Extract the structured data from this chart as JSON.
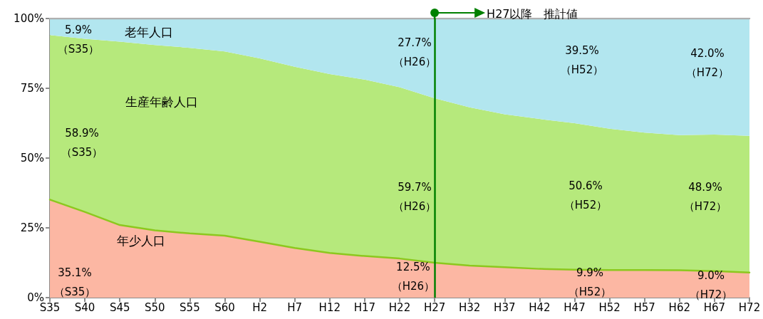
{
  "chart_data": {
    "type": "area",
    "stacked": true,
    "categories": [
      "S35",
      "S40",
      "S45",
      "S50",
      "S55",
      "S60",
      "H2",
      "H7",
      "H12",
      "H17",
      "H22",
      "H27",
      "H32",
      "H37",
      "H42",
      "H47",
      "H52",
      "H57",
      "H62",
      "H67",
      "H72"
    ],
    "series": [
      {
        "name": "年少人口",
        "color": "#fcb7a3",
        "values": [
          35.1,
          30.7,
          26.0,
          24.1,
          23.0,
          22.2,
          20.0,
          17.8,
          16.0,
          14.9,
          14.0,
          12.5,
          11.5,
          10.9,
          10.3,
          10.0,
          9.9,
          9.9,
          9.8,
          9.5,
          9.0
        ]
      },
      {
        "name": "生産年齢人口",
        "color": "#b6e97c",
        "values": [
          59.0,
          62.0,
          65.7,
          66.4,
          66.5,
          66.0,
          65.7,
          64.9,
          64.1,
          63.2,
          61.4,
          58.9,
          56.7,
          54.8,
          53.7,
          52.5,
          50.6,
          49.2,
          48.4,
          48.9,
          49.0
        ]
      },
      {
        "name": "老年人口",
        "color": "#b2e6ef",
        "values": [
          5.9,
          7.3,
          8.3,
          9.5,
          10.5,
          11.8,
          14.3,
          17.3,
          19.9,
          21.9,
          24.6,
          28.6,
          31.8,
          34.3,
          36.0,
          37.5,
          39.5,
          40.9,
          41.8,
          41.6,
          42.0
        ]
      }
    ],
    "ylim": [
      0,
      100
    ],
    "yticks": [
      {
        "value": 0,
        "label": "0%"
      },
      {
        "value": 25,
        "label": "25%"
      },
      {
        "value": 50,
        "label": "50%"
      },
      {
        "value": 75,
        "label": "75%"
      },
      {
        "value": 100,
        "label": "100%"
      }
    ],
    "ref_lines": [
      {
        "axis": "x",
        "value": "H27",
        "label": "H27以降　推計値",
        "color": "#008000"
      }
    ],
    "annotations": [
      "5.9%\n（S35）",
      "58.9%\n（S35）",
      "35.1%\n（S35）",
      "27.7%\n（H26）",
      "59.7%\n（H26）",
      "12.5%\n（H26）",
      "39.5%\n（H52）",
      "50.6%\n（H52）",
      "9.9%\n（H52）",
      "42.0%\n（H72）",
      "48.9%\n（H72）",
      "9.0%\n（H72）"
    ]
  }
}
